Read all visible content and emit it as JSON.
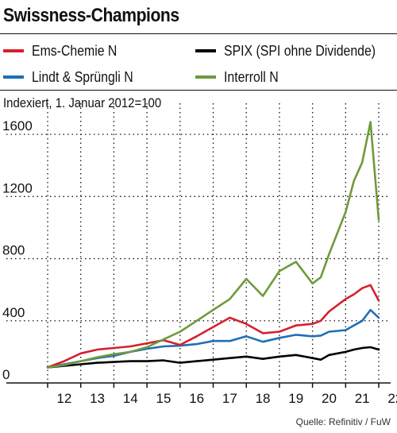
{
  "title": "Swissness-Champions",
  "legend": [
    {
      "label": "Ems-Chemie N",
      "color": "#d6202e"
    },
    {
      "label": "SPIX (SPI ohne Dividende)",
      "color": "#000000"
    },
    {
      "label": "Lindt & Sprüngli N",
      "color": "#1f6fb5"
    },
    {
      "label": "Interroll N",
      "color": "#6f9a3b"
    }
  ],
  "subtitle": "Indexiert, 1. Januar 2012=100",
  "source": "Quelle: Refinitiv / FuW",
  "chart_data": {
    "type": "line",
    "title": "Swissness-Champions",
    "subtitle": "Indexiert, 1. Januar 2012=100",
    "xlabel": "",
    "ylabel": "",
    "xlim": [
      2012.0,
      2022.0
    ],
    "ylim": [
      0,
      1800
    ],
    "y_ticks": [
      0,
      400,
      800,
      1200,
      1600
    ],
    "x_tick_labels": [
      "12",
      "13",
      "14",
      "15",
      "16",
      "17",
      "18",
      "19",
      "20",
      "21",
      "22"
    ],
    "grid": true,
    "legend_position": "top",
    "x": [
      2012.0,
      2012.5,
      2013.0,
      2013.5,
      2014.0,
      2014.5,
      2015.0,
      2015.5,
      2016.0,
      2016.5,
      2017.0,
      2017.5,
      2018.0,
      2018.5,
      2019.0,
      2019.5,
      2020.0,
      2020.25,
      2020.5,
      2021.0,
      2021.25,
      2021.5,
      2021.75,
      2022.0
    ],
    "series": [
      {
        "name": "Interroll N",
        "color": "#6f9a3b",
        "values": [
          100,
          115,
          140,
          165,
          185,
          200,
          230,
          280,
          330,
          400,
          470,
          540,
          670,
          560,
          720,
          780,
          640,
          680,
          830,
          1100,
          1300,
          1420,
          1680,
          1050
        ]
      },
      {
        "name": "Ems-Chemie N",
        "color": "#d6202e",
        "values": [
          100,
          140,
          190,
          215,
          225,
          235,
          255,
          275,
          245,
          300,
          360,
          420,
          380,
          320,
          330,
          370,
          380,
          400,
          460,
          540,
          570,
          610,
          630,
          530
        ]
      },
      {
        "name": "Lindt & Sprüngli N",
        "color": "#1f6fb5",
        "values": [
          100,
          120,
          140,
          160,
          175,
          200,
          220,
          235,
          240,
          250,
          270,
          270,
          300,
          265,
          290,
          310,
          300,
          305,
          330,
          340,
          370,
          400,
          470,
          420
        ]
      },
      {
        "name": "SPIX (SPI ohne Dividende)",
        "color": "#000000",
        "values": [
          100,
          110,
          120,
          130,
          135,
          140,
          140,
          145,
          130,
          140,
          150,
          160,
          170,
          155,
          170,
          180,
          160,
          150,
          180,
          200,
          215,
          225,
          230,
          215
        ]
      }
    ]
  }
}
